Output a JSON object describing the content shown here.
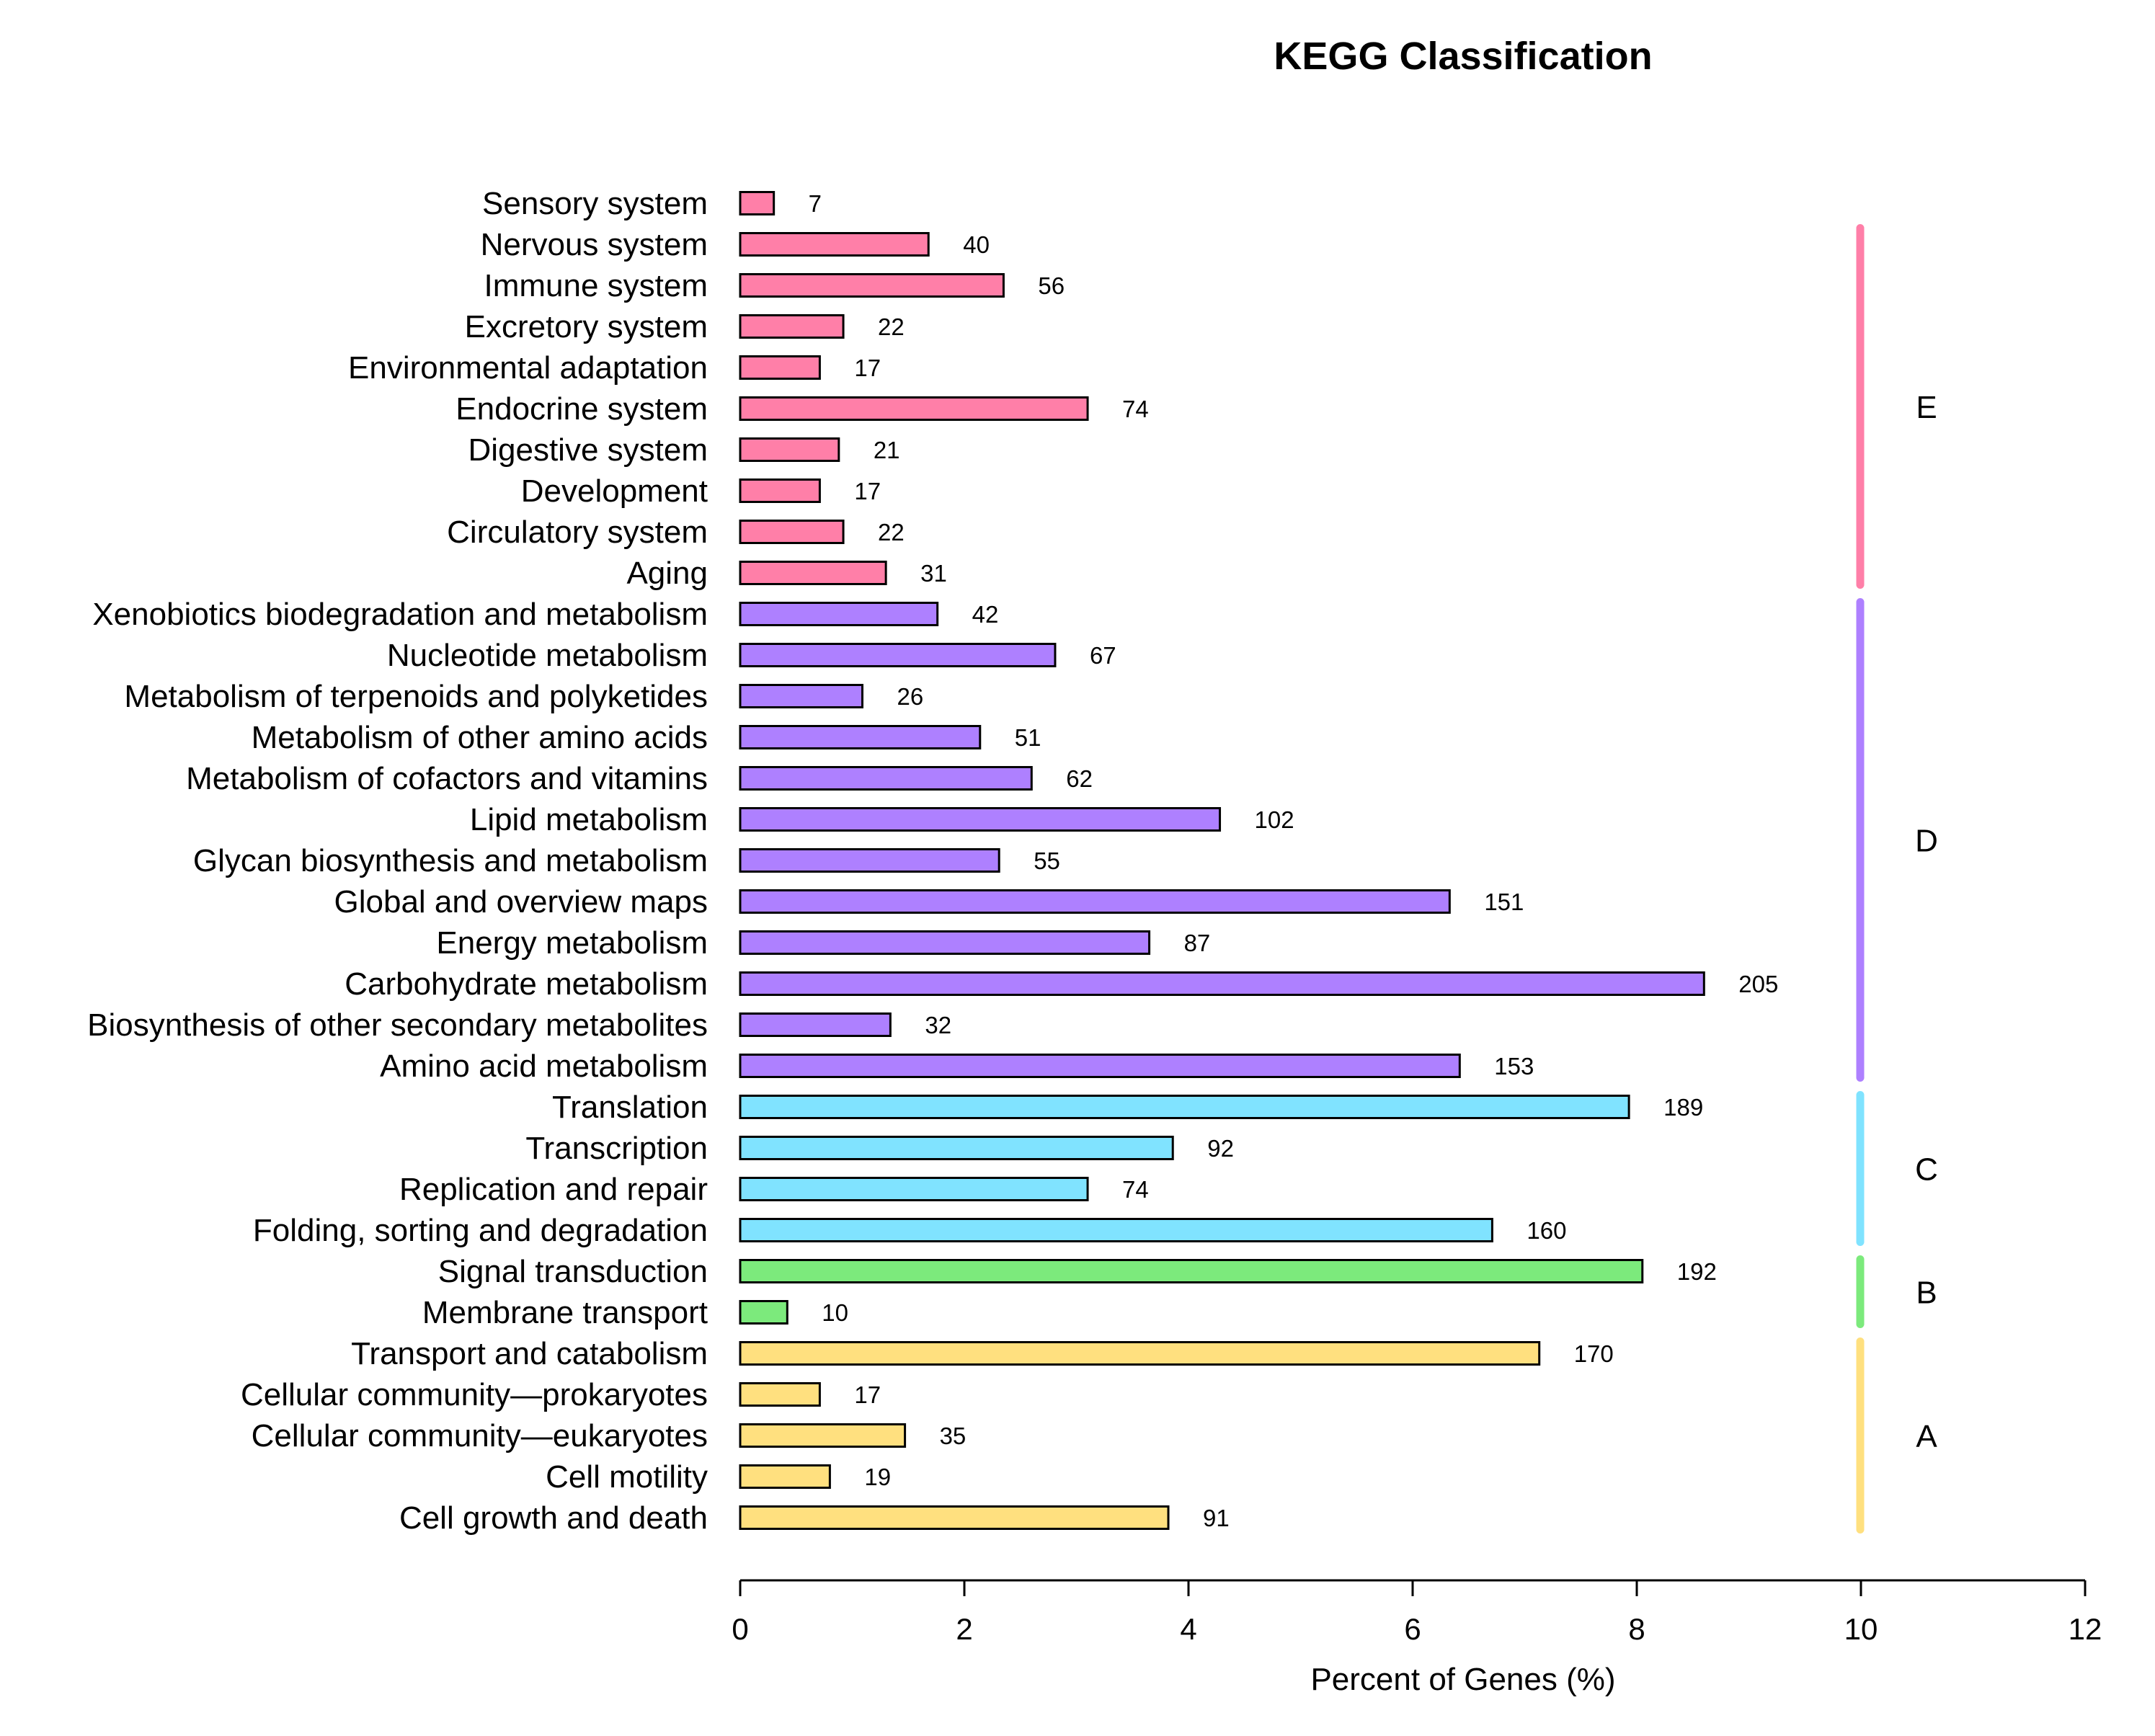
{
  "chart_data": {
    "type": "bar",
    "orientation": "horizontal",
    "title": "KEGG Classification",
    "xlabel": "Percent of Genes (%)",
    "ylabel": "",
    "xlim": [
      0,
      12
    ],
    "xticks": [
      0,
      2,
      4,
      6,
      8,
      10,
      12
    ],
    "grid": false,
    "groups": [
      {
        "id": "E",
        "label": "E",
        "color": "#FF7FA8"
      },
      {
        "id": "D",
        "label": "D",
        "color": "#AE80FF"
      },
      {
        "id": "C",
        "label": "C",
        "color": "#80E3FF"
      },
      {
        "id": "B",
        "label": "B",
        "color": "#7CEA7C"
      },
      {
        "id": "A",
        "label": "A",
        "color": "#FFE07F"
      }
    ],
    "categories": [
      {
        "name": "Sensory system",
        "group": "E",
        "percent": 0.3,
        "count": "7"
      },
      {
        "name": "Nervous system",
        "group": "E",
        "percent": 1.68,
        "count": "40"
      },
      {
        "name": "Immune system",
        "group": "E",
        "percent": 2.35,
        "count": "56"
      },
      {
        "name": "Excretory system",
        "group": "E",
        "percent": 0.92,
        "count": "22"
      },
      {
        "name": "Environmental adaptation",
        "group": "E",
        "percent": 0.71,
        "count": "17"
      },
      {
        "name": "Endocrine system",
        "group": "E",
        "percent": 3.1,
        "count": "74"
      },
      {
        "name": "Digestive system",
        "group": "E",
        "percent": 0.88,
        "count": "21"
      },
      {
        "name": "Development",
        "group": "E",
        "percent": 0.71,
        "count": "17"
      },
      {
        "name": "Circulatory system",
        "group": "E",
        "percent": 0.92,
        "count": "22"
      },
      {
        "name": "Aging",
        "group": "E",
        "percent": 1.3,
        "count": "31"
      },
      {
        "name": "Xenobiotics biodegradation and metabolism",
        "group": "D",
        "percent": 1.76,
        "count": "42"
      },
      {
        "name": "Nucleotide metabolism",
        "group": "D",
        "percent": 2.81,
        "count": "67"
      },
      {
        "name": "Metabolism of terpenoids and polyketides",
        "group": "D",
        "percent": 1.09,
        "count": "26"
      },
      {
        "name": "Metabolism of other amino acids",
        "group": "D",
        "percent": 2.14,
        "count": "51"
      },
      {
        "name": "Metabolism of cofactors and vitamins",
        "group": "D",
        "percent": 2.6,
        "count": "62"
      },
      {
        "name": "Lipid metabolism",
        "group": "D",
        "percent": 4.28,
        "count": "102"
      },
      {
        "name": "Glycan biosynthesis and metabolism",
        "group": "D",
        "percent": 2.31,
        "count": "55"
      },
      {
        "name": "Global and overview maps",
        "group": "D",
        "percent": 6.33,
        "count": "151"
      },
      {
        "name": "Energy metabolism",
        "group": "D",
        "percent": 3.65,
        "count": "87"
      },
      {
        "name": "Carbohydrate metabolism",
        "group": "D",
        "percent": 8.6,
        "count": "205"
      },
      {
        "name": "Biosynthesis of other secondary metabolites",
        "group": "D",
        "percent": 1.34,
        "count": "32"
      },
      {
        "name": "Amino acid metabolism",
        "group": "D",
        "percent": 6.42,
        "count": "153"
      },
      {
        "name": "Translation",
        "group": "C",
        "percent": 7.93,
        "count": "189"
      },
      {
        "name": "Transcription",
        "group": "C",
        "percent": 3.86,
        "count": "92"
      },
      {
        "name": "Replication and repair",
        "group": "C",
        "percent": 3.1,
        "count": "74"
      },
      {
        "name": "Folding, sorting and degradation",
        "group": "C",
        "percent": 6.71,
        "count": "160"
      },
      {
        "name": "Signal transduction",
        "group": "B",
        "percent": 8.05,
        "count": "192"
      },
      {
        "name": "Membrane transport",
        "group": "B",
        "percent": 0.42,
        "count": "10"
      },
      {
        "name": "Transport and catabolism",
        "group": "A",
        "percent": 7.13,
        "count": "170"
      },
      {
        "name": "Cellular community—prokaryotes",
        "group": "A",
        "percent": 0.71,
        "count": "17"
      },
      {
        "name": "Cellular community—eukaryotes",
        "group": "A",
        "percent": 1.47,
        "count": "35"
      },
      {
        "name": "Cell motility",
        "group": "A",
        "percent": 0.8,
        "count": "19"
      },
      {
        "name": "Cell growth and death",
        "group": "A",
        "percent": 3.82,
        "count": "91"
      }
    ]
  }
}
